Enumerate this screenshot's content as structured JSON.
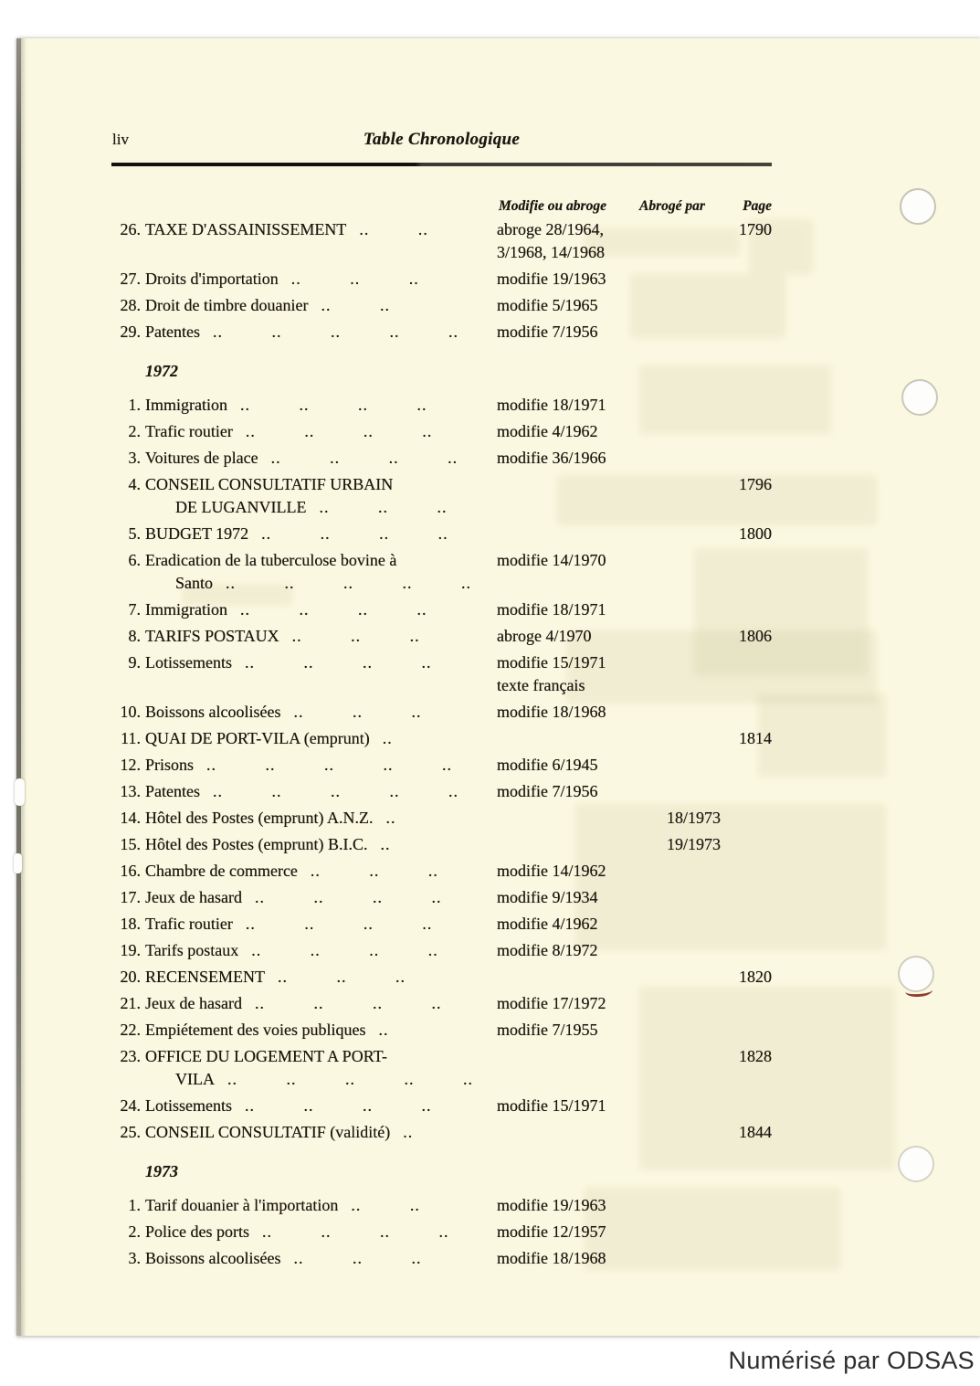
{
  "page": {
    "folio": "liv",
    "running_title": "Table Chronologique",
    "watermark": "Numérisé par ODSAS"
  },
  "colors": {
    "paper": "#fbf8e1",
    "ink": "#1b1710",
    "outer_background": "#ffffff",
    "spine_shadow": "#6b6960",
    "punch_hole_ring": "#c6c3b4",
    "red_pen_mark": "#7e1d10",
    "watermark_text": "#2d2d2d"
  },
  "table": {
    "headers": {
      "modifie_ou_abroge": "Modifie ou abroge",
      "abroge_par": "Abrogé par",
      "page": "Page"
    },
    "sections": [
      {
        "year": "",
        "rows": [
          {
            "num": "26.",
            "title": "TAXE D'ASSAINISSEMENT",
            "dots": ".. ..",
            "modifie": "abroge 28/1964,\n3/1968, 14/1968",
            "abroge_par": "",
            "page": "1790"
          },
          {
            "num": "27.",
            "title": "Droits d'importation",
            "dots": ".. .. ..",
            "modifie": "modifie 19/1963",
            "abroge_par": "",
            "page": ""
          },
          {
            "num": "28.",
            "title": "Droit de timbre douanier",
            "dots": ".. ..",
            "modifie": "modifie 5/1965",
            "abroge_par": "",
            "page": ""
          },
          {
            "num": "29.",
            "title": "Patentes",
            "dots": ".. .. .. .. ..",
            "modifie": "modifie 7/1956",
            "abroge_par": "",
            "page": ""
          }
        ]
      },
      {
        "year": "1972",
        "rows": [
          {
            "num": "1.",
            "title": "Immigration",
            "dots": ".. .. .. ..",
            "modifie": "modifie 18/1971",
            "abroge_par": "",
            "page": ""
          },
          {
            "num": "2.",
            "title": "Trafic routier",
            "dots": ".. .. .. ..",
            "modifie": "modifie 4/1962",
            "abroge_par": "",
            "page": ""
          },
          {
            "num": "3.",
            "title": "Voitures de place",
            "dots": ".. .. .. ..",
            "modifie": "modifie 36/1966",
            "abroge_par": "",
            "page": ""
          },
          {
            "num": "4.",
            "title": "CONSEIL CONSULTATIF URBAIN\nDE LUGANVILLE",
            "dots": ".. .. ..",
            "modifie": "",
            "abroge_par": "",
            "page": "1796"
          },
          {
            "num": "5.",
            "title": "BUDGET 1972",
            "dots": ".. .. .. ..",
            "modifie": "",
            "abroge_par": "",
            "page": "1800"
          },
          {
            "num": "6.",
            "title": "Eradication de la tuberculose bovine à\nSanto",
            "dots": ".. .. .. .. ..",
            "modifie": "modifie 14/1970",
            "abroge_par": "",
            "page": ""
          },
          {
            "num": "7.",
            "title": "Immigration",
            "dots": ".. .. .. ..",
            "modifie": "modifie 18/1971",
            "abroge_par": "",
            "page": ""
          },
          {
            "num": "8.",
            "title": "TARIFS POSTAUX",
            "dots": ".. .. ..",
            "modifie": "abroge 4/1970",
            "abroge_par": "",
            "page": "1806"
          },
          {
            "num": "9.",
            "title": "Lotissements",
            "dots": ".. .. .. ..",
            "modifie": "modifie 15/1971\ntexte français",
            "abroge_par": "",
            "page": ""
          },
          {
            "num": "10.",
            "title": "Boissons alcoolisées",
            "dots": ".. .. ..",
            "modifie": "modifie 18/1968",
            "abroge_par": "",
            "page": ""
          },
          {
            "num": "11.",
            "title": "QUAI DE PORT-VILA (emprunt)",
            "dots": "..",
            "modifie": "",
            "abroge_par": "",
            "page": "1814"
          },
          {
            "num": "12.",
            "title": "Prisons",
            "dots": ".. .. .. .. ..",
            "modifie": "modifie 6/1945",
            "abroge_par": "",
            "page": ""
          },
          {
            "num": "13.",
            "title": "Patentes",
            "dots": ".. .. .. .. ..",
            "modifie": "modifie 7/1956",
            "abroge_par": "",
            "page": ""
          },
          {
            "num": "14.",
            "title": "Hôtel des Postes (emprunt) A.N.Z.",
            "dots": "..",
            "modifie": "",
            "abroge_par": "18/1973",
            "page": ""
          },
          {
            "num": "15.",
            "title": "Hôtel des Postes (emprunt) B.I.C.",
            "dots": "..",
            "modifie": "",
            "abroge_par": "19/1973",
            "page": ""
          },
          {
            "num": "16.",
            "title": "Chambre de commerce",
            "dots": ".. .. ..",
            "modifie": "modifie 14/1962",
            "abroge_par": "",
            "page": ""
          },
          {
            "num": "17.",
            "title": "Jeux de hasard",
            "dots": ".. .. .. ..",
            "modifie": "modifie 9/1934",
            "abroge_par": "",
            "page": ""
          },
          {
            "num": "18.",
            "title": "Trafic routier",
            "dots": ".. .. .. ..",
            "modifie": "modifie 4/1962",
            "abroge_par": "",
            "page": ""
          },
          {
            "num": "19.",
            "title": "Tarifs postaux",
            "dots": ".. .. .. ..",
            "modifie": "modifie 8/1972",
            "abroge_par": "",
            "page": ""
          },
          {
            "num": "20.",
            "title": "RECENSEMENT",
            "dots": ".. .. ..",
            "modifie": "",
            "abroge_par": "",
            "page": "1820"
          },
          {
            "num": "21.",
            "title": "Jeux de hasard",
            "dots": ".. .. .. ..",
            "modifie": "modifie 17/1972",
            "abroge_par": "",
            "page": ""
          },
          {
            "num": "22.",
            "title": "Empiétement des voies publiques",
            "dots": "..",
            "modifie": "modifie 7/1955",
            "abroge_par": "",
            "page": ""
          },
          {
            "num": "23.",
            "title": "OFFICE DU LOGEMENT A PORT-\nVILA",
            "dots": ".. .. .. .. ..",
            "modifie": "",
            "abroge_par": "",
            "page": "1828"
          },
          {
            "num": "24.",
            "title": "Lotissements",
            "dots": ".. .. .. ..",
            "modifie": "modifie 15/1971",
            "abroge_par": "",
            "page": ""
          },
          {
            "num": "25.",
            "title": "CONSEIL CONSULTATIF (validité)",
            "dots": "..",
            "modifie": "",
            "abroge_par": "",
            "page": "1844"
          }
        ]
      },
      {
        "year": "1973",
        "rows": [
          {
            "num": "1.",
            "title": "Tarif douanier à l'importation",
            "dots": ".. ..",
            "modifie": "modifie 19/1963",
            "abroge_par": "",
            "page": ""
          },
          {
            "num": "2.",
            "title": "Police des ports",
            "dots": ".. .. .. ..",
            "modifie": "modifie 12/1957",
            "abroge_par": "",
            "page": ""
          },
          {
            "num": "3.",
            "title": "Boissons alcoolisées",
            "dots": ".. .. ..",
            "modifie": "modifie 18/1968",
            "abroge_par": "",
            "page": ""
          }
        ]
      }
    ]
  }
}
